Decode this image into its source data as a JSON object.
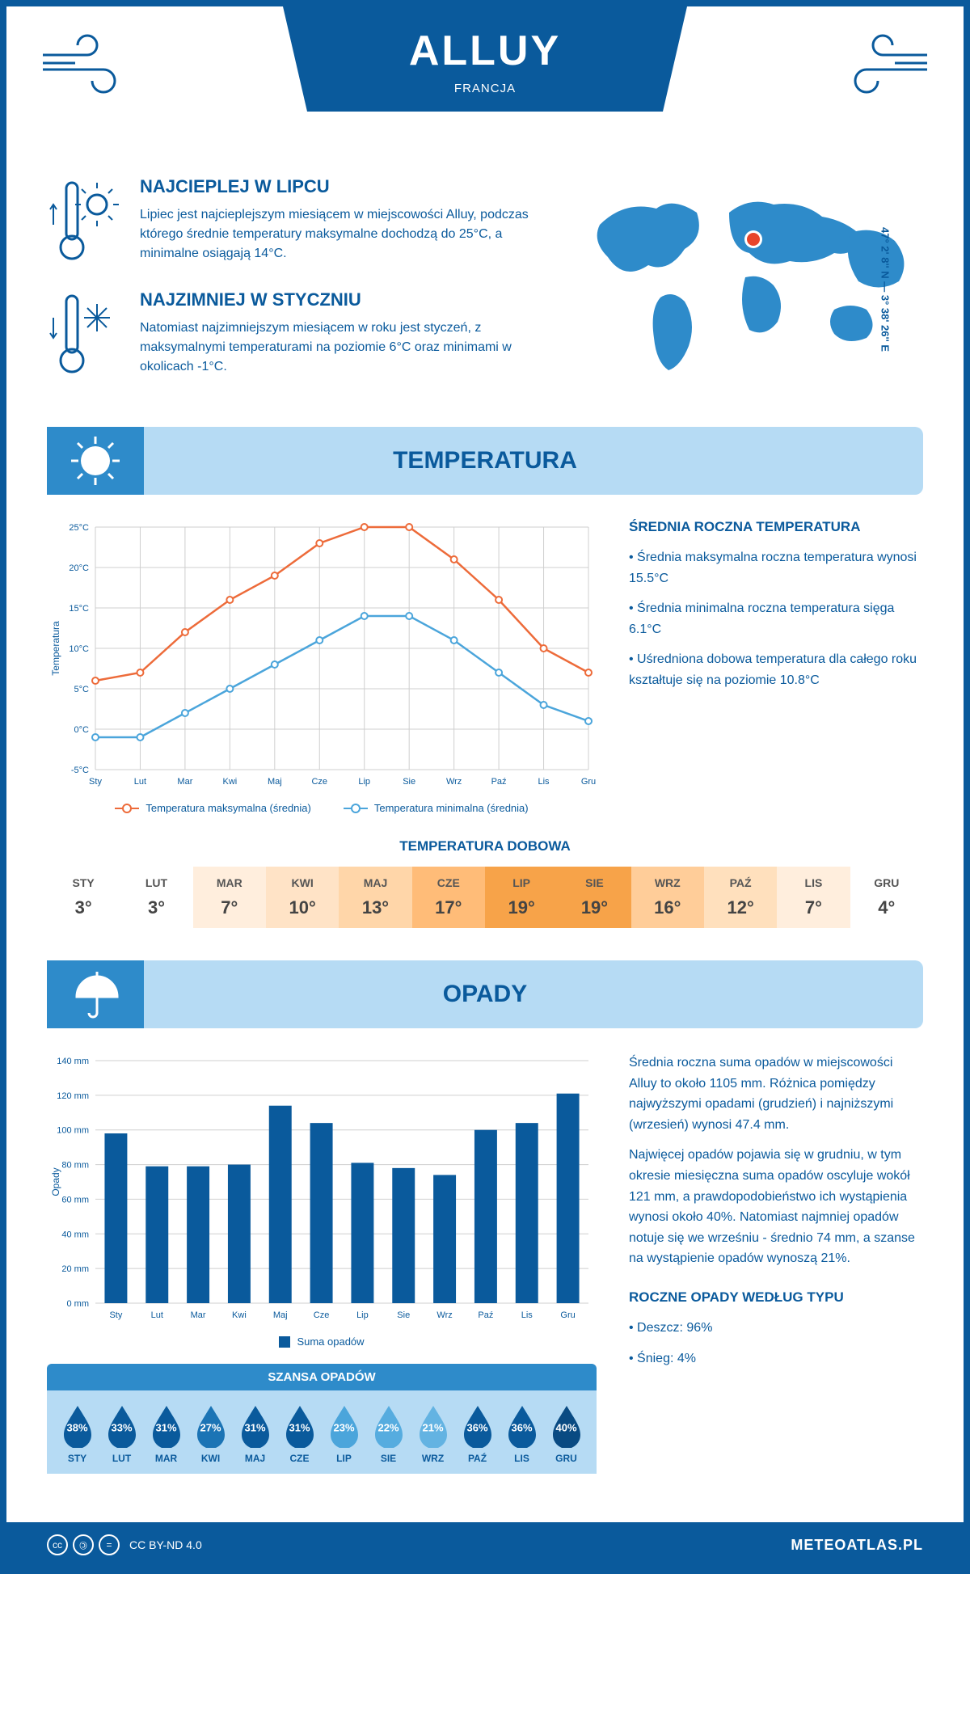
{
  "header": {
    "title": "ALLUY",
    "subtitle": "FRANCJA"
  },
  "coords": "47° 2' 8'' N — 3° 38' 26'' E",
  "intro": {
    "hot": {
      "heading": "NAJCIEPLEJ W LIPCU",
      "text": "Lipiec jest najcieplejszym miesiącem w miejscowości Alluy, podczas którego średnie temperatury maksymalne dochodzą do 25°C, a minimalne osiągają 14°C."
    },
    "cold": {
      "heading": "NAJZIMNIEJ W STYCZNIU",
      "text": "Natomiast najzimniejszym miesiącem w roku jest styczeń, z maksymalnymi temperaturami na poziomie 6°C oraz minimami w okolicach -1°C."
    }
  },
  "months": [
    "Sty",
    "Lut",
    "Mar",
    "Kwi",
    "Maj",
    "Cze",
    "Lip",
    "Sie",
    "Wrz",
    "Paź",
    "Lis",
    "Gru"
  ],
  "months_upper": [
    "STY",
    "LUT",
    "MAR",
    "KWI",
    "MAJ",
    "CZE",
    "LIP",
    "SIE",
    "WRZ",
    "PAŹ",
    "LIS",
    "GRU"
  ],
  "temp": {
    "section_title": "TEMPERATURA",
    "chart": {
      "type": "line",
      "max_series": [
        6,
        7,
        12,
        16,
        19,
        23,
        25,
        25,
        21,
        16,
        10,
        7
      ],
      "min_series": [
        -1,
        -1,
        2,
        5,
        8,
        11,
        14,
        14,
        11,
        7,
        3,
        1
      ],
      "max_color": "#ed6b3a",
      "min_color": "#4ba5db",
      "grid_color": "#cfcfcf",
      "bg": "#ffffff",
      "ylim": [
        -5,
        25
      ],
      "ytick_step": 5,
      "ylabel": "Temperatura",
      "legend": {
        "max": "Temperatura maksymalna (średnia)",
        "min": "Temperatura minimalna (średnia)"
      }
    },
    "info": {
      "heading": "ŚREDNIA ROCZNA TEMPERATURA",
      "b1": "• Średnia maksymalna roczna temperatura wynosi 15.5°C",
      "b2": "• Średnia minimalna roczna temperatura sięga 6.1°C",
      "b3": "• Uśredniona dobowa temperatura dla całego roku kształtuje się na poziomie 10.8°C"
    },
    "daily": {
      "heading": "TEMPERATURA DOBOWA",
      "values": [
        "3°",
        "3°",
        "7°",
        "10°",
        "13°",
        "17°",
        "19°",
        "19°",
        "16°",
        "12°",
        "7°",
        "4°"
      ],
      "colors": [
        "#ffffff",
        "#ffffff",
        "#ffeedd",
        "#ffe3c6",
        "#ffd6a9",
        "#ffbc78",
        "#f7a349",
        "#f7a349",
        "#ffcd99",
        "#ffe0bd",
        "#ffeedd",
        "#ffffff"
      ]
    }
  },
  "precip": {
    "section_title": "OPADY",
    "chart": {
      "type": "bar",
      "values": [
        98,
        79,
        79,
        80,
        114,
        104,
        81,
        78,
        74,
        100,
        104,
        121
      ],
      "bar_color": "#0a5a9c",
      "grid_color": "#cfcfcf",
      "ylim": [
        0,
        140
      ],
      "ytick_step": 20,
      "ylabel": "Opady",
      "legend": "Suma opadów"
    },
    "info": {
      "p1": "Średnia roczna suma opadów w miejscowości Alluy to około 1105 mm. Różnica pomiędzy najwyższymi opadami (grudzień) i najniższymi (wrzesień) wynosi 47.4 mm.",
      "p2": "Najwięcej opadów pojawia się w grudniu, w tym okresie miesięczna suma opadów oscyluje wokół 121 mm, a prawdopodobieństwo ich wystąpienia wynosi około 40%. Natomiast najmniej opadów notuje się we wrześniu - średnio 74 mm, a szanse na wystąpienie opadów wynoszą 21%."
    },
    "chance": {
      "heading": "SZANSA OPADÓW",
      "values": [
        "38%",
        "33%",
        "31%",
        "27%",
        "31%",
        "31%",
        "23%",
        "22%",
        "21%",
        "36%",
        "36%",
        "40%"
      ],
      "colors": [
        "#0a5a9c",
        "#0a5a9c",
        "#0a5a9c",
        "#1b74b5",
        "#0a5a9c",
        "#0a5a9c",
        "#4ba5db",
        "#56acdf",
        "#63b3e2",
        "#0a5a9c",
        "#0a5a9c",
        "#094a82"
      ]
    },
    "bytype": {
      "heading": "ROCZNE OPADY WEDŁUG TYPU",
      "rain": "• Deszcz: 96%",
      "snow": "• Śnieg: 4%"
    }
  },
  "footer": {
    "license": "CC BY-ND 4.0",
    "site": "METEOATLAS.PL"
  }
}
